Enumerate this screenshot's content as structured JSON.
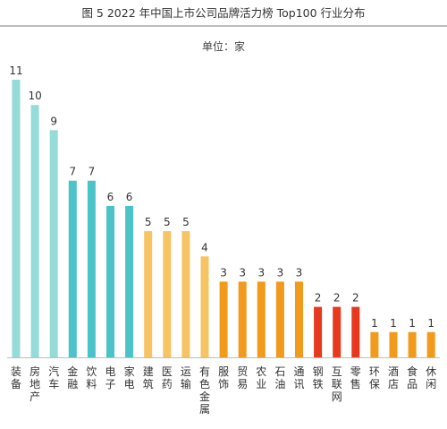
{
  "title": "图 5   2022 年中国上市公司品牌活力榜 Top100 行业分布",
  "unit_label": "单位：家",
  "chart_data": {
    "type": "bar",
    "categories": [
      "装备",
      "房地产",
      "汽车",
      "金融",
      "饮料",
      "电子",
      "家电",
      "建筑",
      "医药",
      "运输",
      "有色金属",
      "服饰",
      "贸易",
      "农业",
      "石油",
      "通讯",
      "钢铁",
      "互联网",
      "零售",
      "环保",
      "酒店",
      "食品",
      "休闲"
    ],
    "values": [
      11,
      10,
      9,
      7,
      7,
      6,
      6,
      5,
      5,
      5,
      4,
      3,
      3,
      3,
      3,
      3,
      2,
      2,
      2,
      1,
      1,
      1,
      1
    ],
    "colors": [
      "#95dbd8",
      "#95dbd8",
      "#95dbd8",
      "#4cc3c8",
      "#4cc3c8",
      "#4cc3c8",
      "#4cc3c8",
      "#f6c462",
      "#f6c462",
      "#f6c462",
      "#f6c462",
      "#f19a1b",
      "#f19a1b",
      "#f19a1b",
      "#f19a1b",
      "#f19a1b",
      "#e6391d",
      "#e6391d",
      "#e6391d",
      "#f19a1b",
      "#f19a1b",
      "#f19a1b",
      "#f19a1b"
    ],
    "axis_color": "#bdbdbd",
    "ylim": [
      0,
      11
    ],
    "grid": false,
    "legend": "none"
  }
}
